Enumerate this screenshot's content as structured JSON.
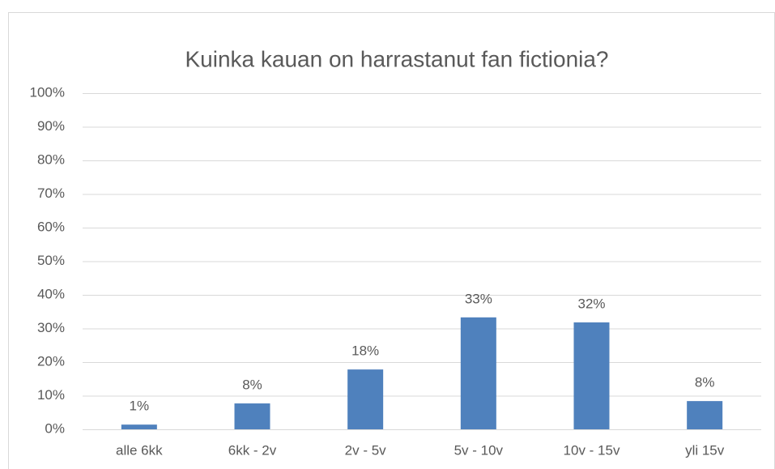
{
  "chart_data": {
    "type": "bar",
    "title": "Kuinka kauan on harrastanut fan fictionia?",
    "categories": [
      "alle 6kk",
      "6kk - 2v",
      "2v - 5v",
      "5v - 10v",
      "10v - 15v",
      "yli 15v"
    ],
    "values": [
      1.4,
      7.7,
      17.8,
      33.3,
      31.8,
      8.4
    ],
    "value_labels": [
      "1%",
      "8%",
      "18%",
      "33%",
      "32%",
      "8%"
    ],
    "color": "#4f81bd",
    "ylim": [
      0,
      100
    ],
    "yticks": [
      {
        "value": 0,
        "label": "0%"
      },
      {
        "value": 10,
        "label": "10%"
      },
      {
        "value": 20,
        "label": "20%"
      },
      {
        "value": 30,
        "label": "30%"
      },
      {
        "value": 40,
        "label": "40%"
      },
      {
        "value": 50,
        "label": "50%"
      },
      {
        "value": 60,
        "label": "60%"
      },
      {
        "value": 70,
        "label": "70%"
      },
      {
        "value": 80,
        "label": "80%"
      },
      {
        "value": 90,
        "label": "90%"
      },
      {
        "value": 100,
        "label": "100%"
      }
    ],
    "grid": true
  }
}
